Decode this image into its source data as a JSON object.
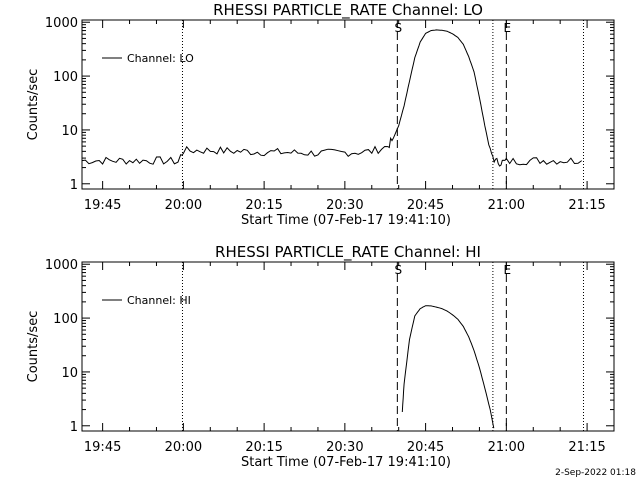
{
  "footer_date": "2-Sep-2022 01:18",
  "chart_data": [
    {
      "type": "line",
      "title": "RHESSI PARTICLE_RATE Channel: LO",
      "xlabel": "Start Time (07-Feb-17 19:41:10)",
      "ylabel": "Counts/sec",
      "yscale": "log",
      "ylim": [
        0.8,
        1100
      ],
      "xlim": [
        "19:41:10",
        "21:20:00"
      ],
      "x_ticks": [
        "19:45",
        "20:00",
        "20:15",
        "20:30",
        "20:45",
        "21:00",
        "21:15"
      ],
      "y_ticks": [
        "1",
        "10",
        "100",
        "1000"
      ],
      "legend": {
        "label": "Channel: LO",
        "position": "top-left"
      },
      "vertical_markers": [
        {
          "label": "",
          "time": "19:59:50",
          "style": "dotted"
        },
        {
          "label": "S",
          "time": "20:39:45",
          "style": "dashed"
        },
        {
          "label": "",
          "time": "20:57:30",
          "style": "dotted"
        },
        {
          "label": "E",
          "time": "21:00:00",
          "style": "dashed"
        },
        {
          "label": "",
          "time": "21:14:20",
          "style": "dotted"
        }
      ],
      "series": [
        {
          "name": "Channel: LO",
          "x": [
            "19:41:10",
            "19:45",
            "19:50",
            "19:55",
            "19:59",
            "20:00",
            "20:05",
            "20:10",
            "20:15",
            "20:20",
            "20:25",
            "20:30",
            "20:35",
            "20:38",
            "20:39",
            "20:40",
            "20:41",
            "20:42",
            "20:43",
            "20:44",
            "20:45",
            "20:46",
            "20:47",
            "20:48",
            "20:49",
            "20:50",
            "20:51",
            "20:52",
            "20:53",
            "20:54",
            "20:55",
            "20:56",
            "20:57",
            "20:58",
            "20:59",
            "21:00",
            "21:05",
            "21:10",
            "21:14"
          ],
          "y": [
            2.7,
            2.7,
            2.7,
            2.7,
            2.6,
            4.1,
            4.2,
            4.0,
            3.9,
            3.8,
            3.7,
            3.8,
            4.0,
            5.0,
            7.0,
            12,
            28,
            80,
            220,
            430,
            620,
            700,
            720,
            710,
            680,
            610,
            520,
            390,
            230,
            120,
            40,
            12,
            4.0,
            2.6,
            2.5,
            2.6,
            2.7,
            2.7,
            2.7
          ],
          "noise": 0.6
        }
      ]
    },
    {
      "type": "line",
      "title": "RHESSI PARTICLE_RATE Channel: HI",
      "xlabel": "Start Time (07-Feb-17 19:41:10)",
      "ylabel": "Counts/sec",
      "yscale": "log",
      "ylim": [
        0.8,
        1100
      ],
      "xlim": [
        "19:41:10",
        "21:20:00"
      ],
      "x_ticks": [
        "19:45",
        "20:00",
        "20:15",
        "20:30",
        "20:45",
        "21:00",
        "21:15"
      ],
      "y_ticks": [
        "1",
        "10",
        "100",
        "1000"
      ],
      "legend": {
        "label": "Channel: HI",
        "position": "top-left"
      },
      "vertical_markers": [
        {
          "label": "",
          "time": "19:59:50",
          "style": "dotted"
        },
        {
          "label": "S",
          "time": "20:39:45",
          "style": "dashed"
        },
        {
          "label": "",
          "time": "20:57:30",
          "style": "dotted"
        },
        {
          "label": "E",
          "time": "21:00:00",
          "style": "dashed"
        },
        {
          "label": "",
          "time": "21:14:20",
          "style": "dotted"
        }
      ],
      "series": [
        {
          "name": "Channel: HI",
          "x": [
            "20:40:40",
            "20:41",
            "20:42",
            "20:43",
            "20:44",
            "20:45",
            "20:46",
            "20:47",
            "20:48",
            "20:49",
            "20:50",
            "20:51",
            "20:52",
            "20:53",
            "20:54",
            "20:55",
            "20:56",
            "20:57",
            "20:57:40"
          ],
          "y": [
            1.8,
            6,
            40,
            110,
            150,
            170,
            168,
            160,
            150,
            135,
            115,
            95,
            70,
            45,
            25,
            12,
            5,
            2,
            0.9
          ],
          "noise": 0
        }
      ]
    }
  ]
}
